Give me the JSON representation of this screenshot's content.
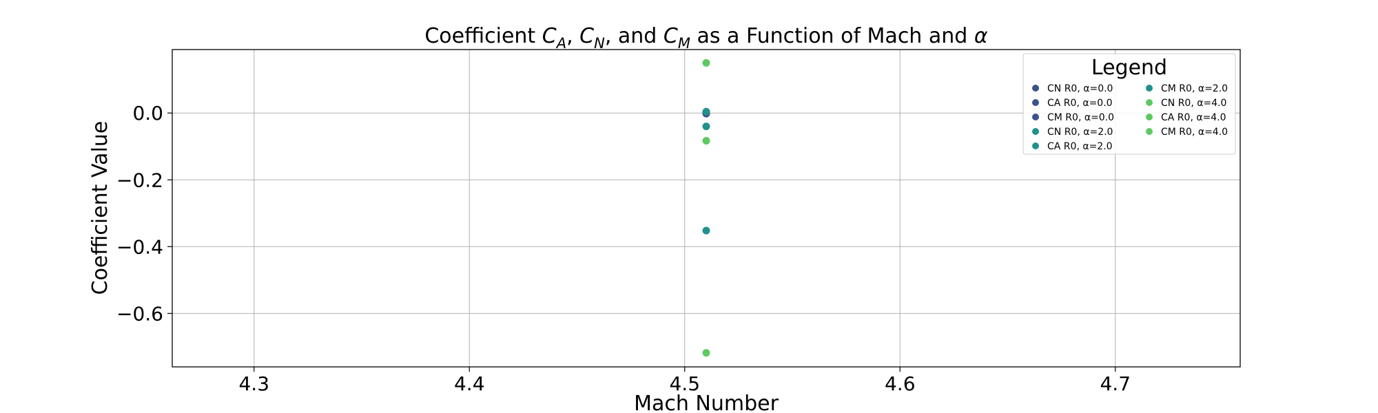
{
  "chart_data": {
    "type": "scatter",
    "title": {
      "prefix": "Coefficient ",
      "ca": "C",
      "ca_sub": "A",
      "sep1": ", ",
      "cn": "C",
      "cn_sub": "N",
      "sep2": ", and ",
      "cm": "C",
      "cm_sub": "M",
      "suffix": " as a Function of Mach and ",
      "alpha": "α"
    },
    "xlabel": "Mach Number",
    "ylabel": "Coefficient Value",
    "xlim": [
      4.262,
      4.758
    ],
    "ylim": [
      -0.76,
      0.19
    ],
    "xticks": [
      4.3,
      4.4,
      4.5,
      4.6,
      4.7
    ],
    "xtick_labels": [
      "4.3",
      "4.4",
      "4.5",
      "4.6",
      "4.7"
    ],
    "yticks": [
      0.0,
      -0.2,
      -0.4,
      -0.6
    ],
    "ytick_labels": [
      "0.0",
      "−0.2",
      "−0.4",
      "−0.6"
    ],
    "grid": true,
    "legend": {
      "title": "Legend",
      "placement": "top-right",
      "columns": 2
    },
    "series": [
      {
        "name": "CN R0, α=0.0",
        "color": "#3b528b",
        "x": [
          4.51
        ],
        "y": [
          0.003
        ]
      },
      {
        "name": "CA R0, α=0.0",
        "color": "#3b528b",
        "x": [
          4.51
        ],
        "y": [
          0.0
        ]
      },
      {
        "name": "CM R0, α=0.0",
        "color": "#3b528b",
        "x": [
          4.51
        ],
        "y": [
          -0.002
        ]
      },
      {
        "name": "CN R0, α=2.0",
        "color": "#21918c",
        "x": [
          4.51
        ],
        "y": [
          -0.04
        ]
      },
      {
        "name": "CA R0, α=2.0",
        "color": "#21918c",
        "x": [
          4.51
        ],
        "y": [
          0.004
        ]
      },
      {
        "name": "CM R0, α=2.0",
        "color": "#21918c",
        "x": [
          4.51
        ],
        "y": [
          -0.352
        ]
      },
      {
        "name": "CN R0, α=4.0",
        "color": "#5ec962",
        "x": [
          4.51
        ],
        "y": [
          -0.083
        ]
      },
      {
        "name": "CA R0, α=4.0",
        "color": "#5ec962",
        "x": [
          4.51
        ],
        "y": [
          0.15
        ]
      },
      {
        "name": "CM R0, α=4.0",
        "color": "#5ec962",
        "x": [
          4.51
        ],
        "y": [
          -0.718
        ]
      }
    ]
  }
}
